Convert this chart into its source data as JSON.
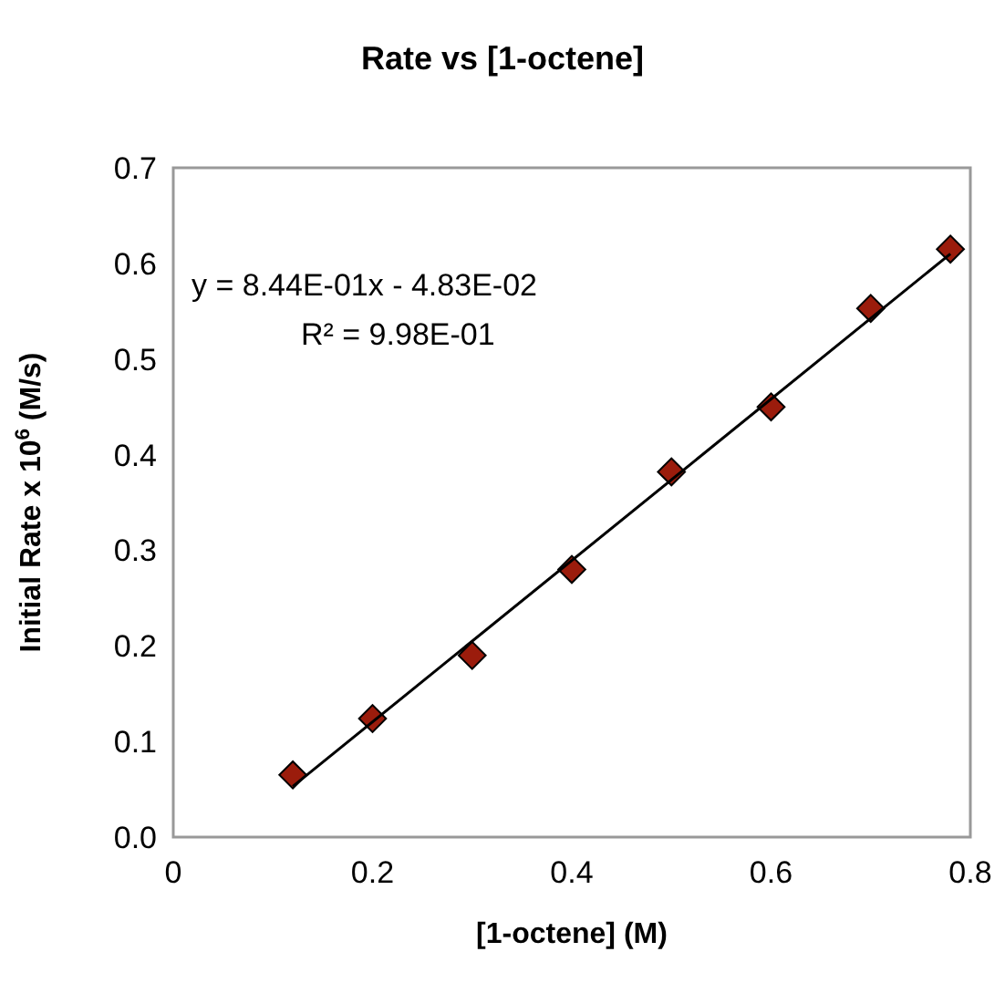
{
  "chart_data": {
    "type": "scatter",
    "title": "Rate vs [1-octene]",
    "xlabel": "[1-octene] (M)",
    "ylabel": "Initial Rate x 10$^{6}$ (M/s)",
    "x": [
      0.12,
      0.2,
      0.3,
      0.4,
      0.5,
      0.6,
      0.7,
      0.78
    ],
    "series": [
      {
        "color": "#9b1c0c",
        "marker": "diamond",
        "values": [
          0.065,
          0.124,
          0.19,
          0.28,
          0.382,
          0.45,
          0.553,
          0.615
        ]
      },
      {
        "type": "line",
        "color": "#000000",
        "x": [
          0.12,
          0.78
        ],
        "values": [
          0.053,
          0.61
        ],
        "marker": "none",
        "line_style": "solid"
      }
    ],
    "xlim": [
      0,
      0.8
    ],
    "xticks": [
      0,
      0.2,
      0.4,
      0.6,
      0.8
    ],
    "ylim": [
      0,
      0.7
    ],
    "yticks": [
      {
        "value": 0,
        "label": "0.0"
      },
      0.1,
      0.2,
      0.3,
      0.4,
      0.5,
      0.6,
      0.7
    ],
    "annotations": [
      "y = 8.44E-01x - 4.83E-02",
      "R² = 9.98E-01"
    ],
    "grid": false
  }
}
